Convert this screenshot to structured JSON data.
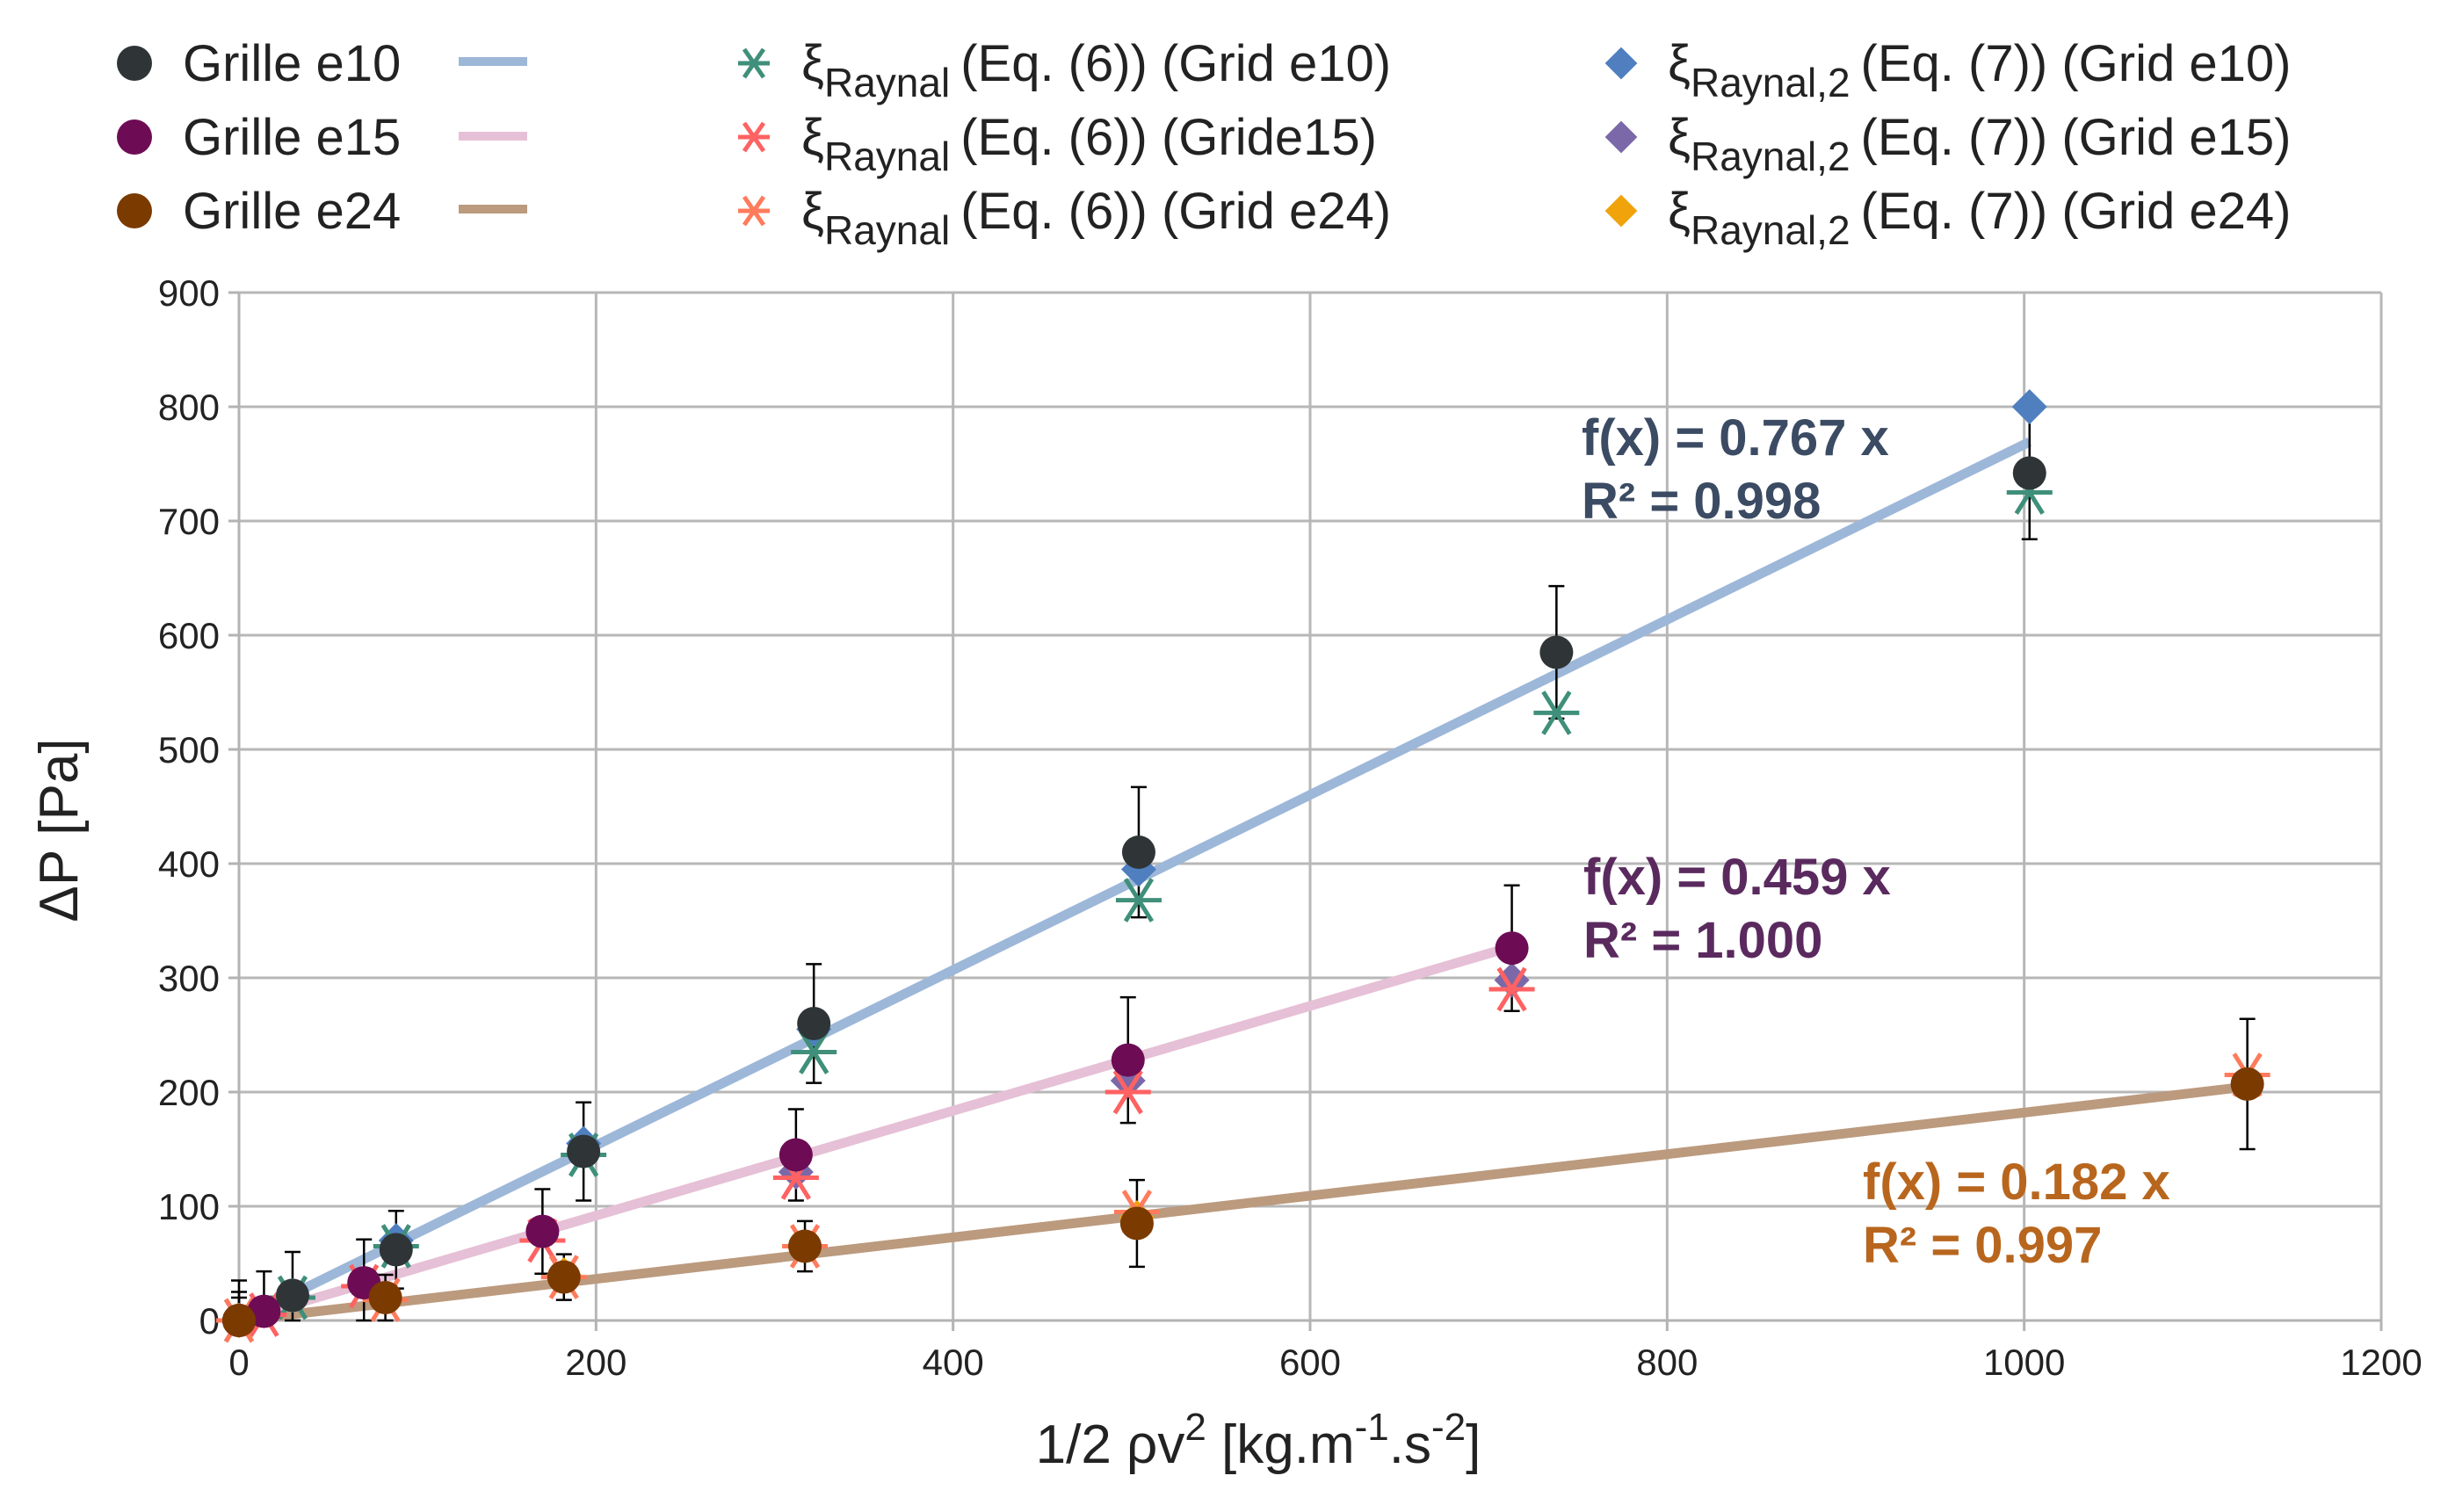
{
  "chart_data": {
    "type": "scatter",
    "xlabel_main": "1/2 ρv",
    "xlabel_sup": "2",
    "xlabel_rest1": " [kg.m",
    "xlabel_sup2": "-1",
    "xlabel_rest2": ".s",
    "xlabel_sup3": "-2",
    "xlabel_rest3": "]",
    "ylabel": "ΔP [Pa]",
    "xlim": [
      0,
      1200
    ],
    "ylim": [
      0,
      900
    ],
    "xticks": [
      0,
      200,
      400,
      600,
      800,
      1000,
      1200
    ],
    "yticks": [
      0,
      100,
      200,
      300,
      400,
      500,
      600,
      700,
      800,
      900
    ],
    "grid": true,
    "legend_position": "top",
    "measured": [
      {
        "name": "Grille e10",
        "color": "#2f3537",
        "x": [
          0,
          30,
          88,
          193,
          322,
          504,
          738,
          1003
        ],
        "y": [
          0,
          22,
          62,
          148,
          260,
          410,
          585,
          742
        ],
        "err": [
          35,
          38,
          34,
          43,
          52,
          57,
          58,
          58
        ]
      },
      {
        "name": "Grille e15",
        "color": "#6d0c54",
        "x": [
          0,
          14,
          70,
          170,
          312,
          498,
          713
        ],
        "y": [
          0,
          8,
          33,
          78,
          145,
          228,
          326
        ],
        "err": [
          25,
          35,
          38,
          37,
          40,
          55,
          55
        ]
      },
      {
        "name": "Grille e24",
        "color": "#7b3a00",
        "x": [
          0,
          82,
          182,
          317,
          503,
          1125
        ],
        "y": [
          0,
          20,
          38,
          65,
          85,
          207
        ],
        "err": [
          20,
          20,
          20,
          22,
          38,
          57
        ]
      }
    ],
    "fits": [
      {
        "name": "Grille e10 fit",
        "color": "#9db7d9",
        "slope": 0.767,
        "x_end": 1003,
        "eq": "f(x) = 0.767 x",
        "r2": "R² = 0.998",
        "label_color": "#3b4b63"
      },
      {
        "name": "Grille e15 fit",
        "color": "#e6c0d6",
        "slope": 0.459,
        "x_end": 713,
        "eq": "f(x) = 0.459 x",
        "r2": "R² = 1.000",
        "label_color": "#5a2a5e"
      },
      {
        "name": "Grille e24 fit",
        "color": "#bb9a7e",
        "slope": 0.182,
        "x_end": 1125,
        "eq": "f(x) = 0.182 x",
        "r2": "R² = 0.997",
        "label_color": "#b8661e"
      }
    ],
    "eq6": [
      {
        "name": "ξRaynal (Eq. (6)) (Grid e10)",
        "color": "#3f8f7a",
        "x": [
          0,
          30,
          88,
          193,
          322,
          504,
          738,
          1003
        ],
        "y": [
          0,
          20,
          65,
          145,
          235,
          368,
          532,
          725
        ]
      },
      {
        "name": "ξRaynal (Eq. (6)) (Gride15)",
        "color": "#ff6262",
        "x": [
          0,
          14,
          70,
          170,
          312,
          498,
          713
        ],
        "y": [
          0,
          5,
          30,
          70,
          125,
          200,
          290
        ]
      },
      {
        "name": "ξRaynal (Eq. (6)) (Grid e24)",
        "color": "#ff7b5c",
        "x": [
          0,
          82,
          182,
          317,
          503,
          1125
        ],
        "y": [
          0,
          18,
          38,
          65,
          95,
          215
        ]
      }
    ],
    "eq7": [
      {
        "name": "ξRaynal,2 (Eq. (7)) (Grid e10)",
        "color": "#4f7fbf",
        "x": [
          0,
          30,
          88,
          193,
          322,
          504,
          1003
        ],
        "y": [
          0,
          22,
          70,
          155,
          255,
          395,
          800
        ]
      },
      {
        "name": "ξRaynal,2 (Eq. (7)) (Grid e15)",
        "color": "#7b68a8",
        "x": [
          0,
          312,
          498,
          713
        ],
        "y": [
          0,
          130,
          210,
          298
        ]
      },
      {
        "name": "ξRaynal,2 (Eq. (7)) (Grid e24)",
        "color": "#f0a30a",
        "x": [
          0,
          182,
          503
        ],
        "y": [
          0,
          40,
          90
        ]
      }
    ],
    "legend": {
      "col1": [
        "Grille e10",
        "Grille e15",
        "Grille e24"
      ],
      "col2_base": "ξ",
      "col2_sub": "Raynal",
      "col2_tail": [
        "(Eq. (6)) (Grid e10)",
        "(Eq. (6)) (Gride15)",
        "(Eq. (6)) (Grid e24)"
      ],
      "col3_base": "ξ",
      "col3_sub": "Raynal,2",
      "col3_tail": [
        "(Eq. (7))  (Grid e10)",
        "(Eq. (7))  (Grid e15)",
        "(Eq. (7))  (Grid e24)"
      ]
    }
  }
}
